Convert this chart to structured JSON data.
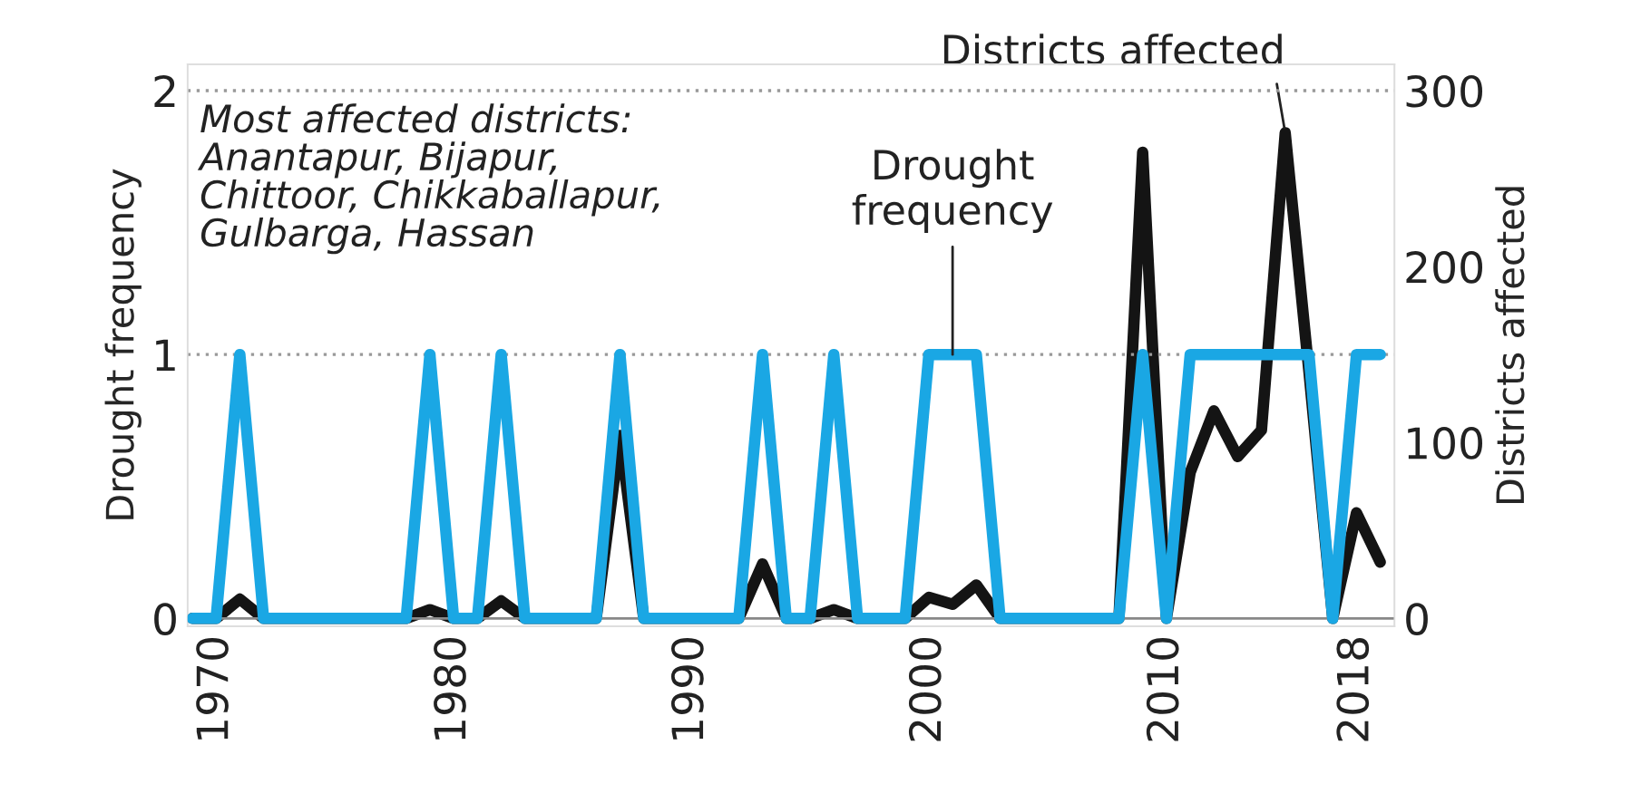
{
  "chart_data": {
    "type": "line",
    "ylabel": "Drought frequency",
    "y2label": "Districts affected",
    "x": [
      1969,
      1970,
      1971,
      1972,
      1973,
      1974,
      1975,
      1976,
      1977,
      1978,
      1979,
      1980,
      1981,
      1982,
      1983,
      1984,
      1985,
      1986,
      1987,
      1988,
      1989,
      1990,
      1991,
      1992,
      1993,
      1994,
      1995,
      1996,
      1997,
      1998,
      1999,
      2000,
      2001,
      2002,
      2003,
      2004,
      2005,
      2006,
      2007,
      2008,
      2009,
      2010,
      2011,
      2012,
      2013,
      2014,
      2015,
      2016,
      2017,
      2018,
      2019
    ],
    "series": [
      {
        "name": "Drought frequency",
        "color": "#1aa7e4",
        "axis": "y",
        "values": [
          0,
          0,
          1,
          0,
          0,
          0,
          0,
          0,
          0,
          0,
          1,
          0,
          0,
          1,
          0,
          0,
          0,
          0,
          1,
          0,
          0,
          0,
          0,
          0,
          1,
          0,
          0,
          1,
          0,
          0,
          0,
          1,
          1,
          1,
          0,
          0,
          0,
          0,
          0,
          0,
          1,
          0,
          1,
          1,
          1,
          1,
          1,
          1,
          0,
          1,
          1
        ]
      },
      {
        "name": "Districts affected",
        "color": "#141414",
        "axis": "y2",
        "values": [
          0,
          0,
          11,
          0,
          0,
          0,
          0,
          0,
          0,
          0,
          5,
          0,
          0,
          10,
          0,
          0,
          0,
          0,
          104,
          0,
          0,
          0,
          0,
          0,
          31,
          0,
          0,
          5,
          0,
          0,
          0,
          12,
          8,
          19,
          0,
          0,
          0,
          0,
          0,
          0,
          265,
          0,
          83,
          118,
          92,
          107,
          276,
          140,
          0,
          60,
          32
        ]
      }
    ],
    "xlim": [
      1968.8,
      2019.6
    ],
    "xticks": [
      1970,
      1980,
      1990,
      2000,
      2010,
      2018
    ],
    "ylim": [
      -0.03,
      2.1
    ],
    "yticks": [
      0,
      1,
      2
    ],
    "y2lim": [
      -4.5,
      315
    ],
    "y2ticks": [
      0,
      100,
      200,
      300
    ],
    "grid": "y",
    "line_style": "solid",
    "marker": "none",
    "annotations": [
      "Most affected districts:\nAnantapur, Bijapur,\nChittoor, Chikkaballapur,\nGulbarga, Hassan"
    ]
  }
}
